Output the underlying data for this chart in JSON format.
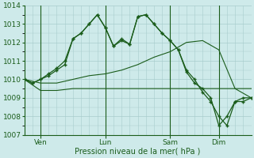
{
  "xlabel": "Pression niveau de la mer( hPa )",
  "bg_color": "#ceeaea",
  "grid_color": "#a8cccc",
  "line_color": "#1a5c1a",
  "ylim": [
    1007,
    1014
  ],
  "day_labels": [
    "Ven",
    "Lun",
    "Sam",
    "Dim"
  ],
  "day_ticks": [
    12,
    60,
    108,
    144
  ],
  "xlim": [
    0,
    168
  ],
  "vert_lines": [
    12,
    60,
    108,
    144
  ],
  "series1_x": [
    0,
    6,
    12,
    18,
    24,
    30,
    36,
    42,
    48,
    54,
    60,
    66,
    72,
    78,
    84,
    90,
    96,
    102,
    108,
    114,
    120,
    126,
    132,
    138,
    144,
    150,
    156,
    162,
    168
  ],
  "series1_y": [
    1010.0,
    1009.8,
    1010.0,
    1010.2,
    1010.5,
    1010.8,
    1012.2,
    1012.5,
    1013.0,
    1013.5,
    1012.8,
    1011.8,
    1012.1,
    1011.9,
    1013.4,
    1013.5,
    1013.0,
    1012.5,
    1012.1,
    1011.6,
    1010.5,
    1010.0,
    1009.3,
    1008.8,
    1008.0,
    1007.5,
    1008.8,
    1008.8,
    1009.0
  ],
  "series2_x": [
    0,
    12,
    24,
    36,
    48,
    60,
    72,
    84,
    96,
    108,
    120,
    132,
    144,
    156,
    168
  ],
  "series2_y": [
    1010.0,
    1009.8,
    1009.8,
    1010.0,
    1010.2,
    1010.3,
    1010.5,
    1010.8,
    1011.2,
    1011.5,
    1012.0,
    1012.1,
    1011.6,
    1009.5,
    1009.5
  ],
  "series3_x": [
    0,
    12,
    24,
    36,
    48,
    60,
    72,
    84,
    96,
    108,
    120,
    132,
    144,
    156,
    168
  ],
  "series3_y": [
    1010.0,
    1009.4,
    1009.4,
    1009.5,
    1009.5,
    1009.5,
    1009.5,
    1009.5,
    1009.5,
    1009.5,
    1009.5,
    1009.5,
    1009.5,
    1009.5,
    1009.0
  ],
  "series4_x": [
    0,
    6,
    12,
    18,
    24,
    30,
    36,
    42,
    48,
    54,
    60,
    66,
    72,
    78,
    84,
    90,
    96,
    102,
    108,
    114,
    120,
    126,
    132,
    138,
    144,
    150,
    156,
    162,
    168
  ],
  "series4_y": [
    1010.0,
    1009.8,
    1010.0,
    1010.3,
    1010.6,
    1011.0,
    1012.2,
    1012.5,
    1013.0,
    1013.5,
    1012.8,
    1011.8,
    1012.2,
    1011.9,
    1013.4,
    1013.5,
    1013.0,
    1012.5,
    1012.1,
    1011.6,
    1010.4,
    1009.8,
    1009.5,
    1009.0,
    1007.5,
    1008.0,
    1008.8,
    1009.0,
    1009.0
  ]
}
